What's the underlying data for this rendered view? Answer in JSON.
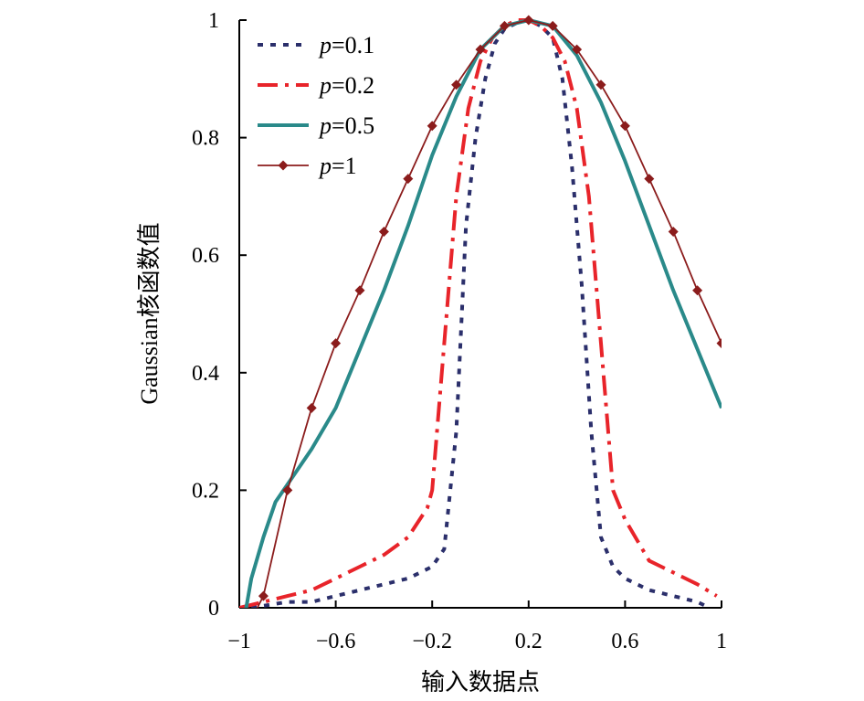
{
  "chart_data": {
    "type": "line",
    "title": "",
    "xlabel": "输入数据点",
    "ylabel": "Gaussian核函数值",
    "xlim": [
      -1,
      1
    ],
    "ylim": [
      0,
      1
    ],
    "xticks": [
      -1,
      -0.6,
      -0.2,
      0.2,
      0.6,
      1
    ],
    "xtick_labels": [
      "−1",
      "−0.6",
      "−0.2",
      "0.2",
      "0.6",
      "1"
    ],
    "yticks": [
      0,
      0.2,
      0.4,
      0.6,
      0.8,
      1
    ],
    "ytick_labels": [
      "0",
      "0.2",
      "0.4",
      "0.6",
      "0.8",
      "1"
    ],
    "grid": false,
    "legend_position": "top-left",
    "series": [
      {
        "name": "p=0.1",
        "legend_var": "p",
        "legend_rest": "=0.1",
        "style": "dotted",
        "color": "#2b2f6b",
        "x": [
          -0.95,
          -0.8,
          -0.7,
          -0.6,
          -0.5,
          -0.4,
          -0.3,
          -0.2,
          -0.15,
          -0.1,
          -0.06,
          -0.02,
          0.02,
          0.06,
          0.1,
          0.15,
          0.2,
          0.25,
          0.3,
          0.34,
          0.38,
          0.42,
          0.46,
          0.5,
          0.55,
          0.6,
          0.7,
          0.8,
          0.9,
          0.95
        ],
        "y": [
          0.0,
          0.01,
          0.01,
          0.02,
          0.03,
          0.04,
          0.05,
          0.07,
          0.1,
          0.3,
          0.65,
          0.8,
          0.9,
          0.96,
          0.985,
          0.995,
          1.0,
          0.99,
          0.97,
          0.9,
          0.75,
          0.55,
          0.3,
          0.12,
          0.07,
          0.05,
          0.03,
          0.02,
          0.01,
          0.0
        ]
      },
      {
        "name": "p=0.2",
        "legend_var": "p",
        "legend_rest": "=0.2",
        "style": "dash-dot",
        "color": "#e8242a",
        "x": [
          -1.0,
          -0.9,
          -0.8,
          -0.7,
          -0.6,
          -0.5,
          -0.4,
          -0.3,
          -0.22,
          -0.2,
          -0.15,
          -0.1,
          -0.05,
          0.0,
          0.05,
          0.1,
          0.15,
          0.2,
          0.25,
          0.3,
          0.35,
          0.4,
          0.45,
          0.5,
          0.55,
          0.6,
          0.7,
          0.8,
          0.9,
          0.98
        ],
        "y": [
          0.0,
          0.01,
          0.02,
          0.03,
          0.05,
          0.07,
          0.09,
          0.12,
          0.17,
          0.2,
          0.45,
          0.7,
          0.85,
          0.93,
          0.97,
          0.99,
          1.0,
          1.0,
          0.99,
          0.97,
          0.93,
          0.85,
          0.7,
          0.45,
          0.2,
          0.15,
          0.08,
          0.06,
          0.04,
          0.02
        ]
      },
      {
        "name": "p=0.5",
        "legend_var": "p",
        "legend_rest": "=0.5",
        "style": "solid",
        "color": "#2a8a8a",
        "x": [
          -0.98,
          -0.95,
          -0.9,
          -0.85,
          -0.8,
          -0.7,
          -0.6,
          -0.5,
          -0.4,
          -0.3,
          -0.2,
          -0.1,
          0.0,
          0.1,
          0.2,
          0.3,
          0.4,
          0.5,
          0.6,
          0.7,
          0.8,
          0.9,
          1.0
        ],
        "y": [
          -0.02,
          0.05,
          0.12,
          0.18,
          0.21,
          0.27,
          0.34,
          0.44,
          0.54,
          0.65,
          0.77,
          0.87,
          0.95,
          0.99,
          1.0,
          0.99,
          0.94,
          0.86,
          0.76,
          0.65,
          0.54,
          0.44,
          0.34
        ]
      },
      {
        "name": "p=1",
        "legend_var": "p",
        "legend_rest": "=1",
        "style": "solid-diamond",
        "color": "#8b1c1c",
        "x": [
          -0.95,
          -0.9,
          -0.8,
          -0.7,
          -0.6,
          -0.5,
          -0.4,
          -0.3,
          -0.2,
          -0.1,
          0.0,
          0.1,
          0.2,
          0.3,
          0.4,
          0.5,
          0.6,
          0.7,
          0.8,
          0.9,
          1.0
        ],
        "y": [
          -0.02,
          0.02,
          0.2,
          0.34,
          0.45,
          0.54,
          0.64,
          0.73,
          0.82,
          0.89,
          0.95,
          0.99,
          1.0,
          0.99,
          0.95,
          0.89,
          0.82,
          0.73,
          0.64,
          0.54,
          0.45
        ]
      }
    ]
  }
}
